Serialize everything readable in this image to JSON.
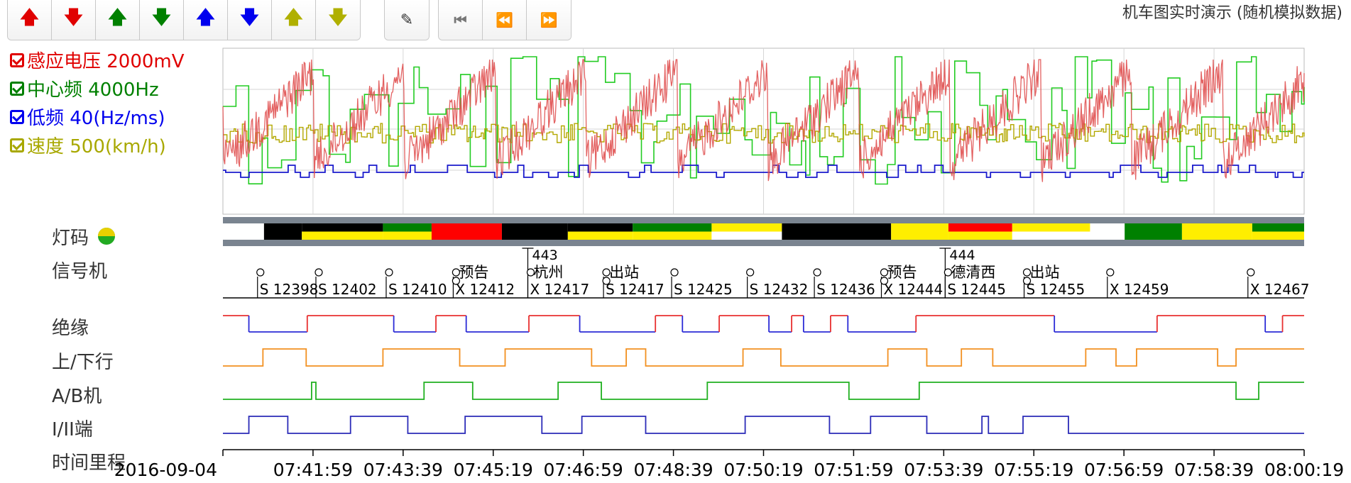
{
  "toolbar": {
    "arrow_buttons": [
      {
        "icon": "arrow-up-icon",
        "glyph": "🡅",
        "color": "#e00000"
      },
      {
        "icon": "arrow-down-icon",
        "glyph": "🡇",
        "color": "#e00000"
      },
      {
        "icon": "arrow-up-icon",
        "glyph": "🡅",
        "color": "#008000"
      },
      {
        "icon": "arrow-down-icon",
        "glyph": "🡇",
        "color": "#008000"
      },
      {
        "icon": "arrow-up-icon",
        "glyph": "🡅",
        "color": "#0000ee"
      },
      {
        "icon": "arrow-down-icon",
        "glyph": "🡇",
        "color": "#0000ee"
      },
      {
        "icon": "arrow-up-icon",
        "glyph": "🡅",
        "color": "#b0b000"
      },
      {
        "icon": "arrow-down-icon",
        "glyph": "🡇",
        "color": "#b0b000"
      }
    ],
    "edit_icon": "pencil-icon",
    "nav_icons": [
      "skip-first-icon",
      "rewind-icon",
      "fast-forward-icon"
    ]
  },
  "title": "机车图实时演示 (随机模拟数据)",
  "legend": [
    {
      "label": "感应电压 2000mV",
      "color": "#e00000"
    },
    {
      "label": "中心频 4000Hz",
      "color": "#008000"
    },
    {
      "label": "低频 40(Hz/ms)",
      "color": "#0000ee"
    },
    {
      "label": "速度 500(km/h)",
      "color": "#a8a800"
    }
  ],
  "row_labels": {
    "light_code": "灯码",
    "signal": "信号机",
    "insulation": "绝缘",
    "direction": "上/下行",
    "ab_machine": "A/B机",
    "end": "I/II端",
    "time_mileage": "时间里程"
  },
  "colors": {
    "red": "#e05050",
    "green": "#22cc22",
    "blue": "#1a1acc",
    "olive": "#b3a800",
    "insulation_hi": "#e83030",
    "insulation_lo": "#2b2bd6",
    "direction": "#f29020",
    "ab": "#20b020",
    "end": "#2b2bb8"
  },
  "chart_data": {
    "type": "line",
    "x_ticks": [
      "2016-09-04",
      "07:41:59",
      "07:43:39",
      "07:45:19",
      "07:46:59",
      "07:48:39",
      "07:50:19",
      "07:51:59",
      "07:53:39",
      "07:55:19",
      "07:56:59",
      "07:58:39",
      "08:00:19"
    ],
    "light_code_segments": [
      {
        "from": 0.0,
        "to": 0.038,
        "color": "white"
      },
      {
        "from": 0.038,
        "to": 0.073,
        "color": "black"
      },
      {
        "from": 0.073,
        "to": 0.148,
        "color": "black-yellow"
      },
      {
        "from": 0.148,
        "to": 0.193,
        "color": "green-yellow"
      },
      {
        "from": 0.193,
        "to": 0.258,
        "color": "red"
      },
      {
        "from": 0.258,
        "to": 0.319,
        "color": "black"
      },
      {
        "from": 0.319,
        "to": 0.379,
        "color": "black-yellow"
      },
      {
        "from": 0.379,
        "to": 0.452,
        "color": "green-yellow"
      },
      {
        "from": 0.452,
        "to": 0.517,
        "color": "yellow-white"
      },
      {
        "from": 0.517,
        "to": 0.618,
        "color": "black"
      },
      {
        "from": 0.618,
        "to": 0.671,
        "color": "yellow"
      },
      {
        "from": 0.671,
        "to": 0.73,
        "color": "red-yellow"
      },
      {
        "from": 0.73,
        "to": 0.802,
        "color": "yellow-white"
      },
      {
        "from": 0.802,
        "to": 0.834,
        "color": "white"
      },
      {
        "from": 0.834,
        "to": 0.887,
        "color": "green"
      },
      {
        "from": 0.887,
        "to": 0.952,
        "color": "yellow"
      },
      {
        "from": 0.952,
        "to": 1.0,
        "color": "green-yellow"
      }
    ],
    "signals": [
      {
        "x": 0.032,
        "label": "S 12398"
      },
      {
        "x": 0.086,
        "label": "S 12402"
      },
      {
        "x": 0.151,
        "label": "S 12410"
      },
      {
        "x": 0.213,
        "label": "X 12412",
        "note": "预告",
        "pre": true
      },
      {
        "x": 0.282,
        "label": "X 12417",
        "note": "杭州",
        "km": "443"
      },
      {
        "x": 0.352,
        "label": "S 12417",
        "note": "出站",
        "pre": true
      },
      {
        "x": 0.415,
        "label": "S 12425"
      },
      {
        "x": 0.485,
        "label": "S 12432"
      },
      {
        "x": 0.547,
        "label": "S 12436"
      },
      {
        "x": 0.609,
        "label": "X 12444",
        "note": "预告",
        "pre": true
      },
      {
        "x": 0.668,
        "label": "S 12445",
        "note": "德清西",
        "km": "444"
      },
      {
        "x": 0.741,
        "label": "S 12455",
        "note": "出站",
        "pre": true
      },
      {
        "x": 0.818,
        "label": "X 12459"
      },
      {
        "x": 0.948,
        "label": "X 12467"
      }
    ],
    "insulation": [
      [
        0,
        1
      ],
      [
        0.024,
        0
      ],
      [
        0.078,
        1
      ],
      [
        0.158,
        0
      ],
      [
        0.197,
        1
      ],
      [
        0.225,
        0
      ],
      [
        0.283,
        1
      ],
      [
        0.33,
        0
      ],
      [
        0.4,
        1
      ],
      [
        0.425,
        0
      ],
      [
        0.459,
        1
      ],
      [
        0.505,
        0
      ],
      [
        0.526,
        1
      ],
      [
        0.537,
        0
      ],
      [
        0.562,
        1
      ],
      [
        0.578,
        0
      ],
      [
        0.641,
        1
      ],
      [
        0.769,
        0
      ],
      [
        0.864,
        1
      ],
      [
        0.964,
        0
      ],
      [
        0.98,
        1
      ],
      [
        1.0,
        1
      ]
    ],
    "direction": [
      [
        0,
        0
      ],
      [
        0.037,
        1
      ],
      [
        0.077,
        0
      ],
      [
        0.148,
        1
      ],
      [
        0.219,
        0
      ],
      [
        0.261,
        1
      ],
      [
        0.341,
        0
      ],
      [
        0.373,
        1
      ],
      [
        0.391,
        0
      ],
      [
        0.481,
        1
      ],
      [
        0.516,
        0
      ],
      [
        0.615,
        1
      ],
      [
        0.651,
        0
      ],
      [
        0.683,
        1
      ],
      [
        0.712,
        0
      ],
      [
        0.798,
        1
      ],
      [
        0.826,
        0
      ],
      [
        0.845,
        1
      ],
      [
        0.92,
        0
      ],
      [
        0.937,
        1
      ],
      [
        1.0,
        1
      ]
    ],
    "ab_machine": [
      [
        0,
        0
      ],
      [
        0.082,
        1
      ],
      [
        0.086,
        0
      ],
      [
        0.186,
        1
      ],
      [
        0.231,
        0
      ],
      [
        0.31,
        1
      ],
      [
        0.35,
        0
      ],
      [
        0.448,
        1
      ],
      [
        0.579,
        0
      ],
      [
        0.644,
        1
      ],
      [
        0.937,
        0
      ],
      [
        0.958,
        1
      ],
      [
        1.0,
        1
      ]
    ],
    "end_line": [
      [
        0,
        0
      ],
      [
        0.024,
        1
      ],
      [
        0.06,
        0
      ],
      [
        0.118,
        1
      ],
      [
        0.171,
        0
      ],
      [
        0.224,
        1
      ],
      [
        0.295,
        0
      ],
      [
        0.332,
        1
      ],
      [
        0.391,
        0
      ],
      [
        0.483,
        1
      ],
      [
        0.561,
        0
      ],
      [
        0.599,
        1
      ],
      [
        0.651,
        0
      ],
      [
        0.702,
        1
      ],
      [
        0.708,
        0
      ],
      [
        0.74,
        1
      ],
      [
        0.782,
        0
      ],
      [
        1.0,
        0
      ]
    ]
  }
}
